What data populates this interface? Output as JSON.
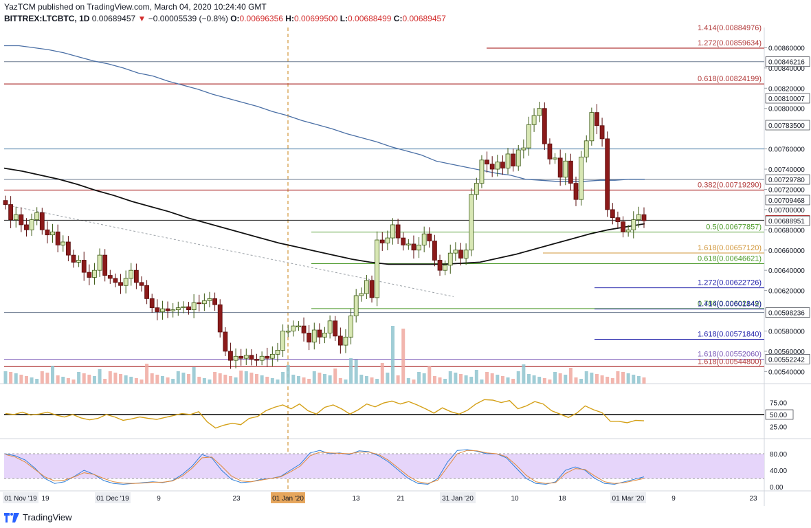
{
  "header": {
    "published": "YazTCM published on TradingView.com, March 04, 2020 10:24:40 GMT",
    "symbol": "BITTREX:LTCBTC, 1D",
    "last": "0.00689457",
    "change": "−0.00005539 (−0.8%)",
    "open_label": "O:",
    "open": "0.00696356",
    "high_label": "H:",
    "high": "0.00699500",
    "low_label": "L:",
    "low": "0.00688499",
    "close_label": "C:",
    "close": "0.00689457"
  },
  "footer": {
    "brand": "TradingView"
  },
  "colors": {
    "up": "#d8e7b4",
    "up_border": "#3c5a14",
    "down": "#8b1a1a",
    "down_border": "#5a0d0d",
    "ma_black": "#111111",
    "ma_blue": "#4a6fa5",
    "fib_red": "#b23b3b",
    "fib_green": "#4c9a2a",
    "fib_orange": "#d1963a",
    "fib_blue": "#1c1ca8",
    "fib_purple": "#7c5cb8",
    "level_gray": "#6b7a8f",
    "rsi": "#d4a017",
    "stoch_bg": "#e6d5fa"
  },
  "chart_data": {
    "type": "candlestick",
    "y_range": [
      0.00528,
      0.0088
    ],
    "x_ticks": [
      "01 Nov '19",
      "19",
      "01 Dec '19",
      "9",
      "23",
      "01 Jan '20",
      "13",
      "21",
      "31 Jan '20",
      "10",
      "18",
      "01 Mar '20",
      "9",
      "23"
    ],
    "price_ticks": [
      "0.00860000",
      "0.00840000",
      "0.00820000",
      "0.00800000",
      "0.00760000",
      "0.00740000",
      "0.00720000",
      "0.00700000",
      "0.00680000",
      "0.00660000",
      "0.00640000",
      "0.00620000",
      "0.00580000",
      "0.00560000",
      "0.00540000"
    ],
    "price_tick_values": [
      0.0086,
      0.0084,
      0.0082,
      0.008,
      0.0076,
      0.0074,
      0.0072,
      0.007,
      0.0068,
      0.0066,
      0.0064,
      0.0062,
      0.0058,
      0.0056,
      0.0054
    ],
    "highlighted_levels": [
      {
        "label": "0.00846216",
        "value": 0.00846216
      },
      {
        "label": "0.00810007",
        "value": 0.00810007
      },
      {
        "label": "0.00783500",
        "value": 0.007835
      },
      {
        "label": "0.00729780",
        "value": 0.0072978
      },
      {
        "label": "0.00709468",
        "value": 0.00709468
      },
      {
        "label": "0.00689457",
        "value": 0.00689457,
        "current": true
      },
      {
        "label": "0.00688951",
        "value": 0.00688951
      },
      {
        "label": "0.00598236",
        "value": 0.00598236
      },
      {
        "label": "0.00552242",
        "value": 0.00552242
      }
    ],
    "fib_levels": [
      {
        "label": "1.414(0.00884976)",
        "value": 0.00884976,
        "color": "fib_red"
      },
      {
        "label": "1.272(0.00859634)",
        "value": 0.00859634,
        "color": "fib_red"
      },
      {
        "label": "0.618(0.00824199)",
        "value": 0.00824199,
        "color": "fib_red"
      },
      {
        "label": "0.382(0.00719290)",
        "value": 0.0071929,
        "color": "fib_red"
      },
      {
        "label": "0.5(0.00677857)",
        "value": 0.00677857,
        "color": "fib_green"
      },
      {
        "label": "1.618(0.00657120)",
        "value": 0.0065712,
        "color": "fib_orange"
      },
      {
        "label": "0.618(0.00646621)",
        "value": 0.00646621,
        "color": "fib_green"
      },
      {
        "label": "1.272(0.00622726)",
        "value": 0.00622726,
        "color": "fib_blue"
      },
      {
        "label": "0.786(0.00602149)",
        "value": 0.00602149,
        "color": "fib_green"
      },
      {
        "label": "1.414(0.00601842)",
        "value": 0.00601842,
        "color": "fib_blue"
      },
      {
        "label": "1.618(0.00571840)",
        "value": 0.0057184,
        "color": "fib_blue"
      },
      {
        "label": "1.618(0.00552060)",
        "value": 0.0055206,
        "color": "fib_purple"
      },
      {
        "label": "1.618(0.00544800)",
        "value": 0.005448,
        "color": "fib_red"
      }
    ],
    "closes": [
      0.00705,
      0.0069,
      0.00695,
      0.00685,
      0.0068,
      0.0069,
      0.00697,
      0.0068,
      0.00675,
      0.00678,
      0.00665,
      0.00668,
      0.00655,
      0.00648,
      0.0065,
      0.00638,
      0.00633,
      0.0064,
      0.00655,
      0.00635,
      0.00632,
      0.00628,
      0.00625,
      0.00632,
      0.0064,
      0.00628,
      0.00625,
      0.00612,
      0.00603,
      0.00599,
      0.00602,
      0.006,
      0.00601,
      0.00603,
      0.00604,
      0.00601,
      0.00608,
      0.00607,
      0.0061,
      0.00612,
      0.00606,
      0.00579,
      0.0056,
      0.00551,
      0.00555,
      0.00553,
      0.00556,
      0.00552,
      0.00551,
      0.00555,
      0.00553,
      0.00557,
      0.00561,
      0.0058,
      0.0058,
      0.00585,
      0.00585,
      0.00578,
      0.00569,
      0.00581,
      0.00574,
      0.00578,
      0.0059,
      0.00575,
      0.00566,
      0.00574,
      0.00595,
      0.00615,
      0.00617,
      0.0063,
      0.00613,
      0.0067,
      0.00667,
      0.00672,
      0.00685,
      0.00672,
      0.00665,
      0.00666,
      0.0066,
      0.00665,
      0.00676,
      0.00669,
      0.0065,
      0.0064,
      0.00645,
      0.00657,
      0.0066,
      0.00652,
      0.0066,
      0.00715,
      0.00726,
      0.00749,
      0.00745,
      0.0074,
      0.00747,
      0.00741,
      0.00755,
      0.00743,
      0.00759,
      0.00761,
      0.00784,
      0.00793,
      0.008,
      0.00765,
      0.0075,
      0.00751,
      0.00732,
      0.00748,
      0.00726,
      0.0071,
      0.00752,
      0.00768,
      0.00796,
      0.00783,
      0.0077,
      0.007,
      0.00692,
      0.00688,
      0.00678,
      0.0068,
      0.0069,
      0.00695,
      0.00689
    ],
    "ma_slow": [
      0.00862,
      0.00862,
      0.0086,
      0.00858,
      0.00855,
      0.00851,
      0.00847,
      0.00844,
      0.0084,
      0.00835,
      0.00832,
      0.00827,
      0.00823,
      0.00819,
      0.00814,
      0.0081,
      0.00806,
      0.00802,
      0.00797,
      0.00793,
      0.00788,
      0.00784,
      0.0078,
      0.00775,
      0.00771,
      0.00767,
      0.00762,
      0.00758,
      0.00754,
      0.00748,
      0.00745,
      0.00742,
      0.00739,
      0.00736,
      0.00734,
      0.0073,
      0.00729,
      0.00728,
      0.00728,
      0.00728,
      0.00729,
      0.00729,
      0.0073,
      0.0073
    ],
    "ma_fast": [
      0.00741,
      0.00738,
      0.00734,
      0.0073,
      0.00725,
      0.00719,
      0.00714,
      0.00708,
      0.00703,
      0.00698,
      0.00692,
      0.00687,
      0.00682,
      0.00677,
      0.00672,
      0.00667,
      0.00663,
      0.00659,
      0.00655,
      0.00651,
      0.00648,
      0.00646,
      0.00646,
      0.00646,
      0.00646,
      0.00647,
      0.00648,
      0.00652,
      0.00656,
      0.00661,
      0.00666,
      0.00671,
      0.00676,
      0.0068,
      0.00683,
      0.00686
    ],
    "rsi": {
      "ticks": [
        "75.00",
        "50.00",
        "25.00"
      ],
      "tick_values": [
        75,
        50,
        25
      ],
      "values": [
        52,
        50,
        55,
        49,
        51,
        55,
        49,
        45,
        50,
        43,
        39,
        42,
        50,
        45,
        38,
        41,
        45,
        42,
        40,
        44,
        48,
        52,
        50,
        56,
        35,
        22,
        28,
        32,
        29,
        42,
        46,
        58,
        65,
        70,
        62,
        72,
        58,
        51,
        65,
        70,
        62,
        51,
        60,
        72,
        66,
        74,
        78,
        72,
        77,
        70,
        62,
        53,
        64,
        56,
        51,
        59,
        72,
        81,
        80,
        75,
        79,
        62,
        68,
        77,
        72,
        58,
        51,
        44,
        53,
        68,
        60,
        54,
        36,
        36,
        33,
        38,
        37
      ]
    },
    "stoch": {
      "ticks": [
        "80.00",
        "40.00",
        "0.00"
      ],
      "tick_values": [
        80,
        40,
        0
      ],
      "band": [
        20,
        80
      ],
      "k": [
        80,
        75,
        65,
        45,
        20,
        8,
        12,
        25,
        40,
        30,
        15,
        8,
        6,
        8,
        10,
        12,
        10,
        15,
        30,
        50,
        78,
        70,
        40,
        18,
        10,
        12,
        18,
        20,
        25,
        40,
        55,
        82,
        88,
        80,
        82,
        78,
        87,
        85,
        75,
        60,
        40,
        20,
        8,
        6,
        20,
        60,
        88,
        90,
        86,
        80,
        80,
        70,
        45,
        20,
        8,
        6,
        12,
        40,
        48,
        40,
        20,
        8,
        6,
        12,
        18,
        24
      ],
      "d": [
        78,
        72,
        60,
        42,
        24,
        14,
        16,
        24,
        34,
        30,
        20,
        12,
        9,
        8,
        9,
        11,
        11,
        14,
        26,
        45,
        70,
        72,
        50,
        26,
        14,
        12,
        16,
        20,
        24,
        36,
        50,
        75,
        84,
        82,
        81,
        80,
        84,
        84,
        78,
        64,
        45,
        26,
        12,
        8,
        16,
        48,
        80,
        88,
        87,
        82,
        80,
        73,
        52,
        28,
        12,
        8,
        10,
        32,
        44,
        42,
        26,
        12,
        8,
        10,
        15,
        20
      ]
    }
  }
}
